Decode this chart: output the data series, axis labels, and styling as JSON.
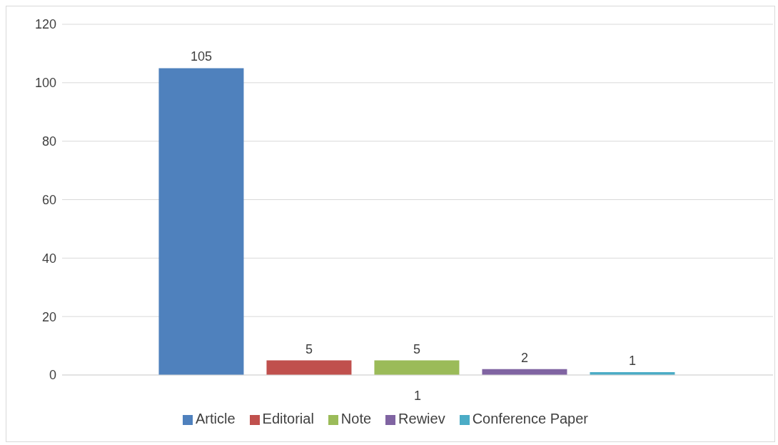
{
  "chart_data": {
    "type": "bar",
    "categories": [
      "1"
    ],
    "series": [
      {
        "name": "Article",
        "color": "#4f81bd",
        "values": [
          105
        ]
      },
      {
        "name": "Editorial",
        "color": "#c0504d",
        "values": [
          5
        ]
      },
      {
        "name": "Note",
        "color": "#9bbb59",
        "values": [
          5
        ]
      },
      {
        "name": "Rewiev",
        "color": "#8064a2",
        "values": [
          2
        ]
      },
      {
        "name": "Conference Paper",
        "color": "#4bacc6",
        "values": [
          1
        ]
      }
    ],
    "ylim": [
      0,
      120
    ],
    "yticks": [
      0,
      20,
      40,
      60,
      80,
      100,
      120
    ],
    "grid": "y",
    "legend": "bottom",
    "data_labels": true
  }
}
